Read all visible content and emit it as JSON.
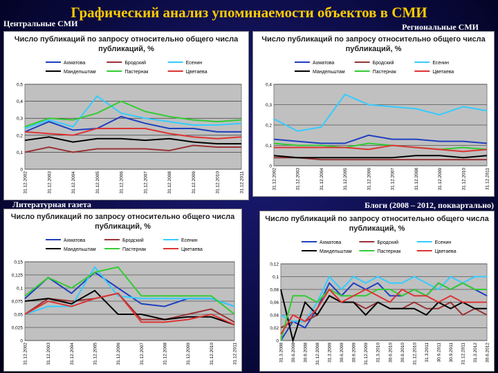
{
  "title": "Графический анализ упоминаемости объектов в СМИ",
  "chart_data": [
    {
      "type": "line",
      "caption": "Центральные СМИ",
      "title": "Число публикаций по запросу относительно общего числа публикаций, %",
      "categories": [
        "31.12.2002",
        "31.12.2003",
        "31.12.2004",
        "31.12.2005",
        "31.12.2006",
        "31.12.2007",
        "31.12.2008",
        "31.12.2009",
        "31.12.2010",
        "31.12.2011"
      ],
      "series": [
        {
          "name": "Ахматова",
          "color": "#1f3fbf",
          "values": [
            0.22,
            0.28,
            0.23,
            0.24,
            0.31,
            0.27,
            0.24,
            0.24,
            0.22,
            0.22
          ]
        },
        {
          "name": "Бродский",
          "color": "#993333",
          "values": [
            0.1,
            0.13,
            0.1,
            0.12,
            0.12,
            0.12,
            0.11,
            0.14,
            0.13,
            0.13
          ]
        },
        {
          "name": "Есенин",
          "color": "#33ccff",
          "values": [
            0.24,
            0.29,
            0.25,
            0.43,
            0.33,
            0.3,
            0.28,
            0.26,
            0.26,
            0.27
          ]
        },
        {
          "name": "Мандельштам",
          "color": "#000000",
          "values": [
            0.17,
            0.19,
            0.16,
            0.18,
            0.18,
            0.17,
            0.18,
            0.16,
            0.15,
            0.15
          ]
        },
        {
          "name": "Пастернак",
          "color": "#33cc33",
          "values": [
            0.25,
            0.3,
            0.29,
            0.33,
            0.4,
            0.34,
            0.31,
            0.29,
            0.28,
            0.29
          ]
        },
        {
          "name": "Цветаева",
          "color": "#dd3333",
          "values": [
            0.22,
            0.21,
            0.2,
            0.24,
            0.24,
            0.24,
            0.21,
            0.19,
            0.18,
            0.19
          ]
        }
      ],
      "ylim": [
        0,
        0.5
      ],
      "yticks": [
        0,
        {
          "value": 0.1,
          "label": "0,1"
        },
        {
          "value": 0.2,
          "label": "0,2"
        },
        {
          "value": 0.3,
          "label": "0,3"
        },
        {
          "value": 0.4,
          "label": "0,4"
        },
        {
          "value": 0.5,
          "label": "0,5"
        }
      ],
      "grid": true
    },
    {
      "type": "line",
      "caption": "Региональные СМИ",
      "title": "Число публикаций по запросу относительно общего числа публикаций, %",
      "categories": [
        "31.12.2002",
        "31.12.2003",
        "31.12.2004",
        "31.12.2005",
        "31.12.2006",
        "31.12.2007",
        "31.12.2008",
        "31.12.2009",
        "31.12.2010",
        "31.12.2011"
      ],
      "series": [
        {
          "name": "Ахматова",
          "color": "#1f3fbf",
          "values": [
            0.13,
            0.12,
            0.11,
            0.11,
            0.15,
            0.13,
            0.13,
            0.12,
            0.12,
            0.11
          ]
        },
        {
          "name": "Бродский",
          "color": "#993333",
          "values": [
            0.04,
            0.04,
            0.03,
            0.03,
            0.03,
            0.03,
            0.03,
            0.03,
            0.03,
            0.03
          ]
        },
        {
          "name": "Есенин",
          "color": "#33ccff",
          "values": [
            0.23,
            0.17,
            0.19,
            0.35,
            0.3,
            0.29,
            0.28,
            0.25,
            0.29,
            0.27
          ]
        },
        {
          "name": "Мандельштам",
          "color": "#000000",
          "values": [
            0.05,
            0.04,
            0.04,
            0.04,
            0.04,
            0.04,
            0.05,
            0.05,
            0.04,
            0.05
          ]
        },
        {
          "name": "Пастернак",
          "color": "#33cc33",
          "values": [
            0.11,
            0.1,
            0.1,
            0.09,
            0.11,
            0.1,
            0.09,
            0.08,
            0.09,
            0.08
          ]
        },
        {
          "name": "Цветаева",
          "color": "#dd3333",
          "values": [
            0.09,
            0.09,
            0.09,
            0.09,
            0.08,
            0.1,
            0.09,
            0.08,
            0.07,
            0.08
          ]
        }
      ],
      "ylim": [
        0,
        0.4
      ],
      "yticks": [
        0,
        {
          "value": 0.1,
          "label": "0,1"
        },
        {
          "value": 0.2,
          "label": "0,2"
        },
        {
          "value": 0.3,
          "label": "0,3"
        },
        {
          "value": 0.4,
          "label": "0,4"
        }
      ],
      "grid": true
    },
    {
      "type": "line",
      "caption": "Литературная газета",
      "title": "Число публикаций по запросу относительно общего числа публикаций, %",
      "categories": [
        "31.12.2002",
        "31.12.2003",
        "31.12.2004",
        "31.12.2005",
        "31.12.2006",
        "31.12.2007",
        "31.12.2008",
        "31.12.2009",
        "31.12.2010",
        "31.12.2011"
      ],
      "series": [
        {
          "name": "Ахматова",
          "color": "#1f3fbf",
          "values": [
            0.08,
            0.12,
            0.09,
            0.13,
            0.1,
            0.07,
            0.065,
            0.08,
            0.08,
            0.065
          ]
        },
        {
          "name": "Бродский",
          "color": "#993333",
          "values": [
            0.05,
            0.08,
            0.075,
            0.08,
            0.09,
            0.04,
            0.04,
            0.05,
            0.06,
            0.035
          ]
        },
        {
          "name": "Есенин",
          "color": "#33ccff",
          "values": [
            0.05,
            0.065,
            0.065,
            0.14,
            0.085,
            0.08,
            0.08,
            0.08,
            0.08,
            0.065
          ]
        },
        {
          "name": "Мандельштам",
          "color": "#000000",
          "values": [
            0.075,
            0.08,
            0.07,
            0.095,
            0.05,
            0.05,
            0.04,
            0.045,
            0.045,
            0.03
          ]
        },
        {
          "name": "Пастернак",
          "color": "#33cc33",
          "values": [
            0.085,
            0.12,
            0.1,
            0.13,
            0.14,
            0.085,
            0.085,
            0.085,
            0.085,
            0.05
          ]
        },
        {
          "name": "Цветаева",
          "color": "#dd3333",
          "values": [
            0.05,
            0.075,
            0.065,
            0.08,
            0.09,
            0.035,
            0.035,
            0.04,
            0.05,
            0.03
          ]
        }
      ],
      "ylim": [
        0,
        0.15
      ],
      "yticks": [
        0,
        {
          "value": 0.025,
          "label": "0,025"
        },
        {
          "value": 0.05,
          "label": "0,05"
        },
        {
          "value": 0.075,
          "label": "0,075"
        },
        {
          "value": 0.1,
          "label": "0,1"
        },
        {
          "value": 0.125,
          "label": "0,125"
        },
        {
          "value": 0.15,
          "label": "0,15"
        }
      ],
      "grid": true
    },
    {
      "type": "line",
      "caption": "Блоги (2008 – 2012, поквартально)",
      "title": "Число публикаций по запросу относительно общего числа публикаций, %",
      "categories": [
        "31.3.2008",
        "30.6.2008",
        "30.9.2008",
        "31.12.2008",
        "31.3.2009",
        "30.6.2009",
        "30.9.2009",
        "31.12.2009",
        "31.3.2010",
        "30.6.2010",
        "30.9.2010",
        "31.12.2010",
        "31.3.2011",
        "30.6.2011",
        "30.9.2011",
        "31.12.2011",
        "31.3.2012",
        "30.6.2012"
      ],
      "series": [
        {
          "name": "Ахматова",
          "color": "#1f3fbf",
          "values": [
            0,
            0.03,
            0.02,
            0.05,
            0.09,
            0.07,
            0.09,
            0.08,
            0.09,
            0.07,
            0.07,
            0.08,
            0.07,
            0.09,
            0.08,
            0.09,
            0.08,
            0.07
          ]
        },
        {
          "name": "Бродский",
          "color": "#993333",
          "values": [
            0.02,
            0.03,
            0.03,
            0.04,
            0.07,
            0.06,
            0.06,
            0.05,
            0.06,
            0.05,
            0.05,
            0.06,
            0.05,
            0.05,
            0.06,
            0.04,
            0.05,
            0.04
          ]
        },
        {
          "name": "Есенин",
          "color": "#33ccff",
          "values": [
            0.04,
            0.03,
            0.03,
            0.06,
            0.1,
            0.08,
            0.1,
            0.09,
            0.1,
            0.09,
            0.09,
            0.1,
            0.09,
            0.08,
            0.1,
            0.09,
            0.1,
            0.1
          ]
        },
        {
          "name": "Мандельштам",
          "color": "#000000",
          "values": [
            0.08,
            0,
            0.06,
            0.04,
            0.07,
            0.06,
            0.06,
            0.04,
            0.06,
            0.05,
            0.05,
            0.05,
            0.04,
            0.06,
            0.05,
            0.06,
            0.05,
            0.05
          ]
        },
        {
          "name": "Пастернак",
          "color": "#33cc33",
          "values": [
            0,
            0.07,
            0.07,
            0.06,
            0.08,
            0.07,
            0.07,
            0.07,
            0.08,
            0.08,
            0.07,
            0.08,
            0.07,
            0.09,
            0.08,
            0.09,
            0.08,
            0.08
          ]
        },
        {
          "name": "Цветаева",
          "color": "#dd3333",
          "values": [
            0.01,
            0.04,
            0.03,
            0.05,
            0.08,
            0.06,
            0.07,
            0.08,
            0.07,
            0.06,
            0.08,
            0.07,
            0.07,
            0.06,
            0.07,
            0.06,
            0.06,
            0.06
          ]
        }
      ],
      "ylim": [
        0,
        0.12
      ],
      "yticks": [
        0,
        {
          "value": 0.02,
          "label": "0,02"
        },
        {
          "value": 0.04,
          "label": "0,04"
        },
        {
          "value": 0.06,
          "label": "0,06"
        },
        {
          "value": 0.08,
          "label": "0,08"
        },
        {
          "value": 0.1,
          "label": "0,1"
        },
        {
          "value": 0.12,
          "label": "0,12"
        }
      ],
      "grid": true
    }
  ]
}
